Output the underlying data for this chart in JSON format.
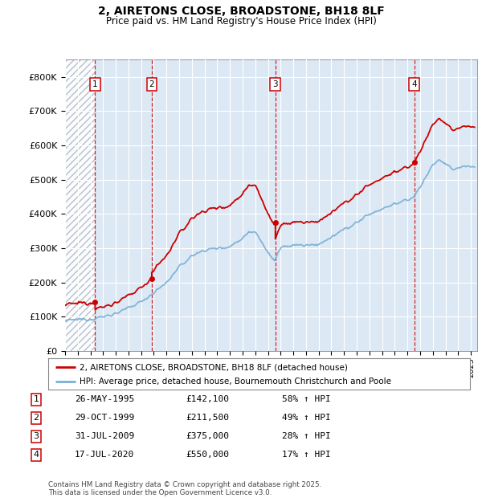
{
  "title1": "2, AIRETONS CLOSE, BROADSTONE, BH18 8LF",
  "title2": "Price paid vs. HM Land Registry's House Price Index (HPI)",
  "ylim": [
    0,
    850000
  ],
  "yticks": [
    0,
    100000,
    200000,
    300000,
    400000,
    500000,
    600000,
    700000,
    800000
  ],
  "ytick_labels": [
    "£0",
    "£100K",
    "£200K",
    "£300K",
    "£400K",
    "£500K",
    "£600K",
    "£700K",
    "£800K"
  ],
  "xlim_start": 1993.0,
  "xlim_end": 2025.5,
  "bg_color": "#ffffff",
  "plot_bg_color": "#dce9f5",
  "grid_color": "#ffffff",
  "transactions": [
    {
      "num": 1,
      "date": "26-MAY-1995",
      "price": 142100,
      "year": 1995.37,
      "pct": "58%",
      "dir": "↑"
    },
    {
      "num": 2,
      "date": "29-OCT-1999",
      "price": 211500,
      "year": 1999.83,
      "pct": "49%",
      "dir": "↑"
    },
    {
      "num": 3,
      "date": "31-JUL-2009",
      "price": 375000,
      "year": 2009.58,
      "pct": "28%",
      "dir": "↑"
    },
    {
      "num": 4,
      "date": "17-JUL-2020",
      "price": 550000,
      "year": 2020.54,
      "pct": "17%",
      "dir": "↑"
    }
  ],
  "legend_line1": "2, AIRETONS CLOSE, BROADSTONE, BH18 8LF (detached house)",
  "legend_line2": "HPI: Average price, detached house, Bournemouth Christchurch and Poole",
  "footnote": "Contains HM Land Registry data © Crown copyright and database right 2025.\nThis data is licensed under the Open Government Licence v3.0.",
  "red_color": "#cc0000",
  "blue_color": "#7aafd4"
}
